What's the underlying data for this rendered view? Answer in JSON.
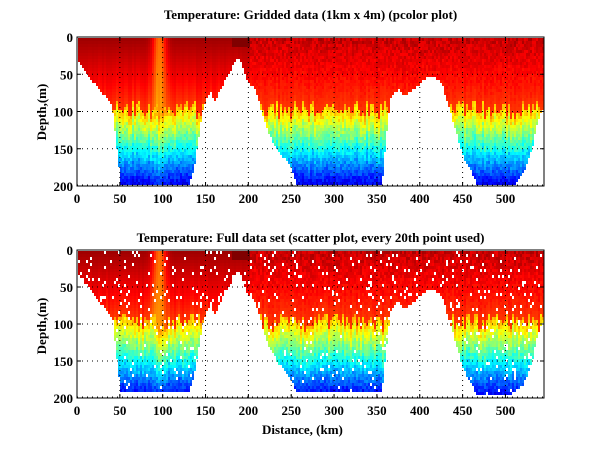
{
  "chart_data": [
    {
      "type": "heatmap",
      "title": "Temperature: Gridded data (1km x 4m) (pcolor plot)",
      "xlabel": "",
      "ylabel": "Depth,(m)",
      "xlim": [
        0,
        545
      ],
      "ylim": [
        200,
        0
      ],
      "y_reversed": true,
      "xticks": [
        0,
        50,
        100,
        150,
        200,
        250,
        300,
        350,
        400,
        450,
        500
      ],
      "yticks": [
        0,
        50,
        100,
        150,
        200
      ],
      "grid": true,
      "colormap": "jet",
      "bottom_depth_profile": {
        "distance_km": [
          0,
          10,
          20,
          30,
          40,
          50,
          55,
          60,
          70,
          80,
          90,
          100,
          110,
          120,
          130,
          135,
          140,
          145,
          150,
          155,
          160,
          165,
          170,
          175,
          180,
          185,
          190,
          195,
          200,
          205,
          210,
          220,
          230,
          240,
          250,
          255,
          260,
          270,
          280,
          290,
          300,
          310,
          320,
          330,
          340,
          350,
          355,
          360,
          365,
          370,
          375,
          380,
          385,
          390,
          395,
          400,
          405,
          410,
          415,
          420,
          425,
          430,
          440,
          450,
          460,
          465,
          470,
          480,
          490,
          500,
          510,
          520,
          530,
          535,
          540,
          545
        ],
        "depth_m": [
          30,
          45,
          62,
          75,
          90,
          195,
          195,
          195,
          195,
          195,
          195,
          195,
          195,
          195,
          195,
          180,
          140,
          100,
          80,
          72,
          85,
          72,
          60,
          50,
          40,
          25,
          32,
          50,
          60,
          65,
          80,
          120,
          145,
          160,
          175,
          195,
          195,
          195,
          195,
          195,
          195,
          195,
          195,
          195,
          195,
          195,
          195,
          130,
          80,
          72,
          68,
          78,
          75,
          70,
          65,
          60,
          55,
          50,
          52,
          55,
          62,
          80,
          120,
          160,
          180,
          195,
          195,
          195,
          195,
          195,
          195,
          180,
          150,
          120,
          100,
          90
        ]
      },
      "temperature_structure": {
        "warm_surface_layer_depth_m": [
          0,
          100
        ],
        "thermocline_depth_m": [
          80,
          130
        ],
        "cold_bottom_layer_depth_m": [
          130,
          200
        ],
        "warm_tongue_distance_km": 95
      }
    },
    {
      "type": "scatter",
      "title": "Temperature: Full data set (scatter plot, every 20th point used)",
      "xlabel": "Distance, (km)",
      "ylabel": "Depth,(m)",
      "xlim": [
        0,
        545
      ],
      "ylim": [
        200,
        0
      ],
      "y_reversed": true,
      "xticks": [
        0,
        50,
        100,
        150,
        200,
        250,
        300,
        350,
        400,
        450,
        500
      ],
      "yticks": [
        0,
        50,
        100,
        150,
        200
      ],
      "grid": true,
      "colormap": "jet",
      "bottom_depth_profile": {
        "distance_km": [
          0,
          10,
          20,
          30,
          40,
          50,
          55,
          60,
          70,
          80,
          90,
          100,
          110,
          120,
          130,
          135,
          140,
          145,
          150,
          155,
          160,
          165,
          170,
          175,
          180,
          185,
          190,
          195,
          200,
          205,
          210,
          220,
          230,
          240,
          250,
          255,
          260,
          270,
          280,
          290,
          300,
          310,
          320,
          330,
          340,
          350,
          355,
          360,
          365,
          370,
          375,
          380,
          385,
          390,
          395,
          400,
          405,
          410,
          415,
          420,
          425,
          430,
          440,
          450,
          460,
          465,
          470,
          480,
          490,
          500,
          510,
          520,
          530,
          535,
          540,
          545
        ],
        "depth_m": [
          30,
          45,
          62,
          75,
          90,
          190,
          190,
          190,
          190,
          190,
          190,
          190,
          190,
          190,
          190,
          170,
          140,
          100,
          80,
          72,
          85,
          72,
          60,
          50,
          40,
          25,
          32,
          50,
          60,
          65,
          80,
          120,
          145,
          160,
          175,
          190,
          190,
          190,
          190,
          190,
          190,
          190,
          190,
          190,
          190,
          190,
          190,
          130,
          80,
          72,
          68,
          78,
          75,
          70,
          65,
          60,
          55,
          50,
          52,
          55,
          62,
          80,
          120,
          160,
          180,
          195,
          195,
          195,
          195,
          195,
          190,
          180,
          150,
          120,
          100,
          90
        ]
      },
      "temperature_structure": {
        "warm_surface_layer_depth_m": [
          0,
          100
        ],
        "thermocline_depth_m": [
          80,
          130
        ],
        "cold_bottom_layer_depth_m": [
          130,
          200
        ],
        "warm_tongue_distance_km": 95
      }
    }
  ]
}
